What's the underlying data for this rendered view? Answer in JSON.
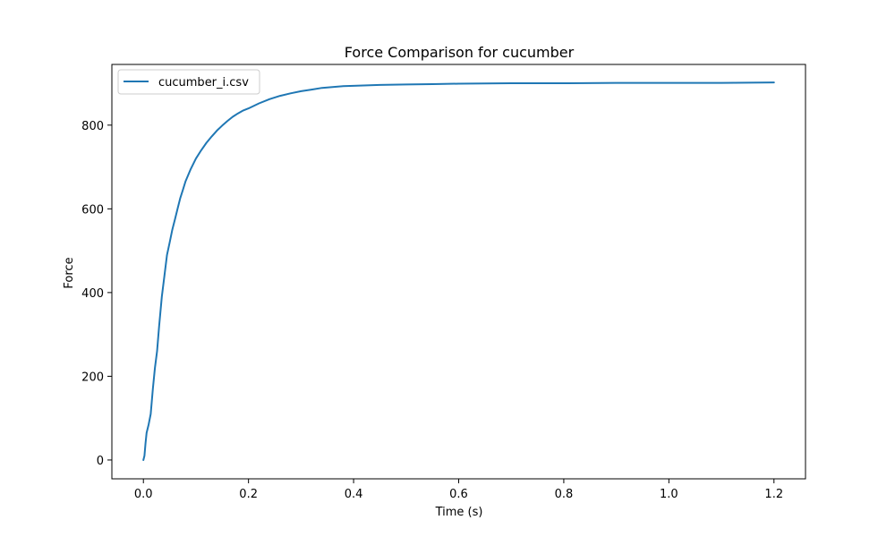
{
  "chart_data": {
    "type": "line",
    "title": "Force Comparison for cucumber",
    "xlabel": "Time (s)",
    "ylabel": "Force",
    "xlim": [
      -0.06,
      1.26
    ],
    "ylim": [
      -45,
      945
    ],
    "xticks": [
      0.0,
      0.2,
      0.4,
      0.6,
      0.8,
      1.0,
      1.2
    ],
    "xtick_labels": [
      "0.0",
      "0.2",
      "0.4",
      "0.6",
      "0.8",
      "1.0",
      "1.2"
    ],
    "yticks": [
      0,
      200,
      400,
      600,
      800
    ],
    "ytick_labels": [
      "0",
      "200",
      "400",
      "600",
      "800"
    ],
    "grid": false,
    "legend_position": "upper-left",
    "series": [
      {
        "name": "cucumber_i.csv",
        "color": "#1f77b4",
        "x": [
          0.0,
          0.002,
          0.004,
          0.006,
          0.01,
          0.014,
          0.018,
          0.022,
          0.026,
          0.03,
          0.035,
          0.04,
          0.045,
          0.05,
          0.055,
          0.06,
          0.065,
          0.07,
          0.075,
          0.08,
          0.09,
          0.1,
          0.11,
          0.12,
          0.13,
          0.14,
          0.15,
          0.16,
          0.17,
          0.18,
          0.19,
          0.2,
          0.22,
          0.24,
          0.26,
          0.28,
          0.3,
          0.32,
          0.34,
          0.36,
          0.38,
          0.4,
          0.45,
          0.5,
          0.55,
          0.6,
          0.7,
          0.8,
          0.9,
          1.0,
          1.1,
          1.2
        ],
        "y": [
          0,
          10,
          40,
          65,
          85,
          110,
          170,
          220,
          260,
          320,
          390,
          440,
          490,
          520,
          550,
          575,
          600,
          625,
          645,
          665,
          695,
          720,
          740,
          758,
          773,
          787,
          799,
          810,
          820,
          828,
          835,
          840,
          852,
          862,
          870,
          876,
          881,
          885,
          889,
          891,
          893,
          894,
          896,
          897,
          898,
          899,
          900,
          900,
          901,
          901,
          901,
          902
        ]
      }
    ]
  }
}
